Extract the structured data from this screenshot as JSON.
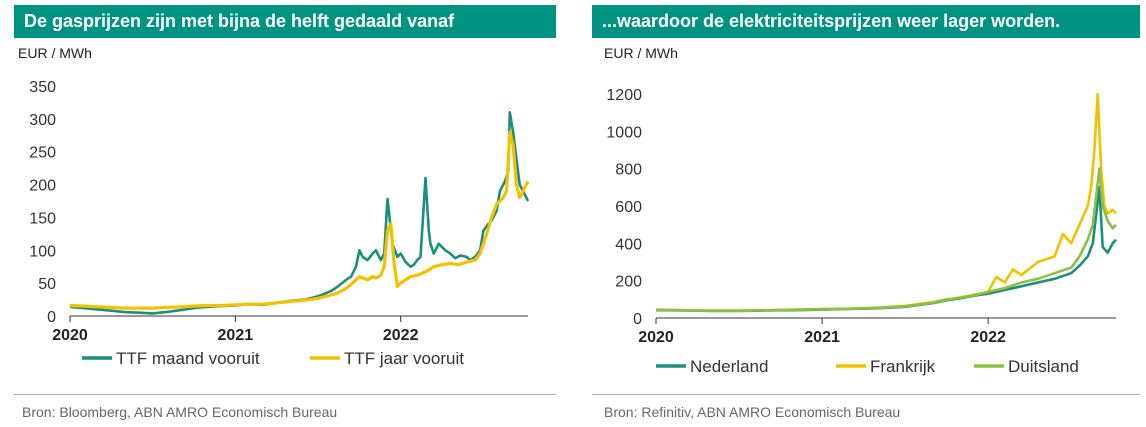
{
  "chart_data": [
    {
      "type": "line",
      "title": "De gasprijzen zijn met bijna de helft gedaald vanaf",
      "unit_label": "EUR / MWh",
      "source": "Bron: Bloomberg, ABN AMRO Economisch Bureau",
      "ylim": [
        0,
        350
      ],
      "yticks": [
        0,
        50,
        100,
        150,
        200,
        250,
        300,
        350
      ],
      "xlim": [
        2020,
        2022.77
      ],
      "xticks": [
        2020,
        2021,
        2022
      ],
      "grid": false,
      "legend_position": "bottom",
      "series": [
        {
          "name": "TTF maand vooruit",
          "color": "#1a8f7f",
          "x": [
            2020,
            2020.08,
            2020.17,
            2020.25,
            2020.33,
            2020.42,
            2020.5,
            2020.58,
            2020.67,
            2020.75,
            2020.83,
            2020.92,
            2021,
            2021.08,
            2021.17,
            2021.25,
            2021.33,
            2021.42,
            2021.5,
            2021.58,
            2021.62,
            2021.67,
            2021.7,
            2021.73,
            2021.75,
            2021.77,
            2021.8,
            2021.83,
            2021.85,
            2021.88,
            2021.9,
            2021.92,
            2021.95,
            2021.98,
            2022,
            2022.03,
            2022.06,
            2022.08,
            2022.1,
            2022.12,
            2022.15,
            2022.17,
            2022.18,
            2022.2,
            2022.23,
            2022.27,
            2022.3,
            2022.33,
            2022.36,
            2022.4,
            2022.42,
            2022.45,
            2022.48,
            2022.5,
            2022.53,
            2022.55,
            2022.58,
            2022.6,
            2022.62,
            2022.63,
            2022.65,
            2022.66,
            2022.68,
            2022.7,
            2022.72,
            2022.75,
            2022.77
          ],
          "values": [
            14,
            12,
            10,
            8,
            6,
            5,
            4,
            6,
            9,
            12,
            14,
            15,
            16,
            18,
            17,
            20,
            23,
            25,
            30,
            38,
            45,
            55,
            60,
            75,
            100,
            90,
            85,
            95,
            100,
            85,
            95,
            178,
            110,
            90,
            95,
            82,
            75,
            78,
            85,
            90,
            210,
            130,
            110,
            95,
            110,
            100,
            95,
            88,
            92,
            90,
            85,
            90,
            100,
            130,
            140,
            145,
            160,
            190,
            200,
            205,
            220,
            310,
            280,
            240,
            200,
            185,
            175
          ]
        },
        {
          "name": "TTF jaar vooruit",
          "color": "#f2c200",
          "x": [
            2020,
            2020.08,
            2020.17,
            2020.25,
            2020.33,
            2020.42,
            2020.5,
            2020.58,
            2020.67,
            2020.75,
            2020.83,
            2020.92,
            2021,
            2021.08,
            2021.17,
            2021.25,
            2021.33,
            2021.42,
            2021.5,
            2021.58,
            2021.62,
            2021.67,
            2021.7,
            2021.73,
            2021.75,
            2021.77,
            2021.8,
            2021.83,
            2021.85,
            2021.88,
            2021.9,
            2021.92,
            2021.94,
            2021.96,
            2021.98,
            2022,
            2022.03,
            2022.06,
            2022.1,
            2022.13,
            2022.17,
            2022.2,
            2022.25,
            2022.3,
            2022.35,
            2022.4,
            2022.45,
            2022.48,
            2022.5,
            2022.52,
            2022.55,
            2022.58,
            2022.6,
            2022.62,
            2022.64,
            2022.66,
            2022.68,
            2022.7,
            2022.72,
            2022.75,
            2022.77
          ],
          "values": [
            16,
            15,
            14,
            13,
            12,
            12,
            12,
            13,
            14,
            15,
            16,
            16,
            17,
            18,
            18,
            20,
            22,
            24,
            27,
            32,
            35,
            42,
            48,
            55,
            60,
            58,
            55,
            60,
            58,
            62,
            75,
            130,
            140,
            80,
            45,
            50,
            55,
            60,
            62,
            65,
            70,
            75,
            78,
            80,
            78,
            82,
            85,
            95,
            110,
            125,
            150,
            170,
            175,
            180,
            190,
            280,
            260,
            200,
            180,
            195,
            205
          ]
        }
      ]
    },
    {
      "type": "line",
      "title": "...waardoor de elektriciteitsprijzen weer lager worden.",
      "unit_label": "EUR / MWh",
      "source": "Bron: Refinitiv, ABN AMRO Economisch Bureau",
      "ylim": [
        0,
        1200
      ],
      "yticks": [
        0,
        200,
        400,
        600,
        800,
        1000,
        1200
      ],
      "xlim": [
        2020,
        2022.77
      ],
      "xticks": [
        2020,
        2021,
        2022
      ],
      "grid": false,
      "legend_position": "bottom",
      "series": [
        {
          "name": "Nederland",
          "color": "#1a8f7f",
          "x": [
            2020,
            2020.17,
            2020.33,
            2020.5,
            2020.67,
            2020.83,
            2021,
            2021.17,
            2021.33,
            2021.5,
            2021.67,
            2021.75,
            2021.83,
            2021.92,
            2022,
            2022.1,
            2022.2,
            2022.3,
            2022.4,
            2022.5,
            2022.55,
            2022.6,
            2022.63,
            2022.65,
            2022.67,
            2022.69,
            2022.72,
            2022.75,
            2022.77
          ],
          "values": [
            42,
            40,
            38,
            38,
            40,
            42,
            45,
            48,
            52,
            60,
            80,
            95,
            105,
            120,
            130,
            150,
            170,
            190,
            210,
            240,
            280,
            330,
            400,
            550,
            700,
            380,
            350,
            400,
            420
          ]
        },
        {
          "name": "Frankrijk",
          "color": "#f2c200",
          "x": [
            2020,
            2020.17,
            2020.33,
            2020.5,
            2020.67,
            2020.83,
            2021,
            2021.17,
            2021.33,
            2021.5,
            2021.67,
            2021.75,
            2021.83,
            2021.92,
            2022,
            2022.05,
            2022.1,
            2022.15,
            2022.2,
            2022.3,
            2022.4,
            2022.45,
            2022.5,
            2022.55,
            2022.6,
            2022.62,
            2022.64,
            2022.66,
            2022.67,
            2022.68,
            2022.7,
            2022.72,
            2022.75,
            2022.77
          ],
          "values": [
            45,
            42,
            40,
            40,
            42,
            45,
            48,
            50,
            55,
            65,
            85,
            100,
            110,
            125,
            140,
            220,
            190,
            260,
            230,
            300,
            330,
            450,
            400,
            500,
            600,
            700,
            900,
            1200,
            1000,
            800,
            600,
            560,
            580,
            560
          ]
        },
        {
          "name": "Duitsland",
          "color": "#8cbf44",
          "x": [
            2020,
            2020.17,
            2020.33,
            2020.5,
            2020.67,
            2020.83,
            2021,
            2021.17,
            2021.33,
            2021.5,
            2021.67,
            2021.75,
            2021.83,
            2021.92,
            2022,
            2022.1,
            2022.2,
            2022.3,
            2022.4,
            2022.5,
            2022.55,
            2022.6,
            2022.63,
            2022.65,
            2022.67,
            2022.69,
            2022.72,
            2022.75,
            2022.77
          ],
          "values": [
            44,
            41,
            39,
            39,
            41,
            44,
            47,
            50,
            54,
            62,
            82,
            98,
            108,
            122,
            140,
            160,
            190,
            210,
            240,
            270,
            330,
            420,
            500,
            650,
            800,
            600,
            520,
            480,
            500
          ]
        }
      ]
    }
  ]
}
